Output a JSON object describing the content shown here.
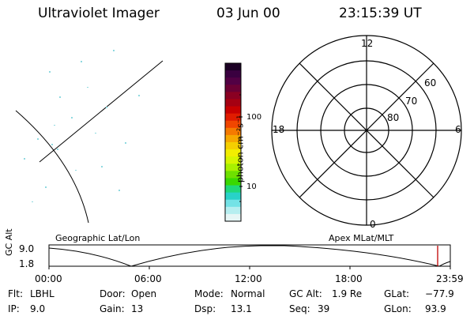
{
  "header": {
    "instrument": "Ultraviolet Imager",
    "date": "03 Jun 00",
    "time": "23:15:39 UT"
  },
  "colorbar": {
    "unit_label": "photon cm⁻²s⁻¹",
    "tick_labels": [
      "100",
      "10"
    ],
    "colors": [
      "#1b0024",
      "#3a0040",
      "#520044",
      "#6b0034",
      "#8a0022",
      "#a50012",
      "#c70000",
      "#e01c00",
      "#f04600",
      "#f57a00",
      "#f6a800",
      "#f5cf00",
      "#f2ee00",
      "#d6f500",
      "#a8f000",
      "#6ee000",
      "#3ad800",
      "#20d87a",
      "#28d2c8",
      "#74e2e6",
      "#b6eef0",
      "#e6f6f6"
    ]
  },
  "polar_plot": {
    "mlt_labels": {
      "top": "12",
      "left": "18",
      "right": "6",
      "bottom": "0"
    },
    "lat_labels": [
      "60",
      "70",
      "80"
    ]
  },
  "timeline": {
    "left_title": "Geographic Lat/Lon",
    "right_title": "Apex MLat/MLT",
    "axis_label": "GC Alt",
    "y_ticks": [
      "9.0",
      "1.8"
    ],
    "x_ticks": [
      "00:00",
      "06:00",
      "12:00",
      "18:00",
      "23:59"
    ],
    "current_marker_color": "#c00000"
  },
  "info": {
    "filter": {
      "label": "Flt:",
      "value": "LBHL"
    },
    "ip": {
      "label": "IP:",
      "value": "9.0"
    },
    "door": {
      "label": "Door:",
      "value": "Open"
    },
    "gain": {
      "label": "Gain:",
      "value": "13"
    },
    "mode": {
      "label": "Mode:",
      "value": "Normal"
    },
    "dsp": {
      "label": "Dsp:",
      "value": "13.1"
    },
    "gc_alt": {
      "label": "GC Alt:",
      "value": "1.9 Re"
    },
    "seq": {
      "label": "Seq:",
      "value": "39"
    },
    "glat": {
      "label": "GLat:",
      "value": "−77.9"
    },
    "glon": {
      "label": "GLon:",
      "value": "93.9"
    }
  }
}
